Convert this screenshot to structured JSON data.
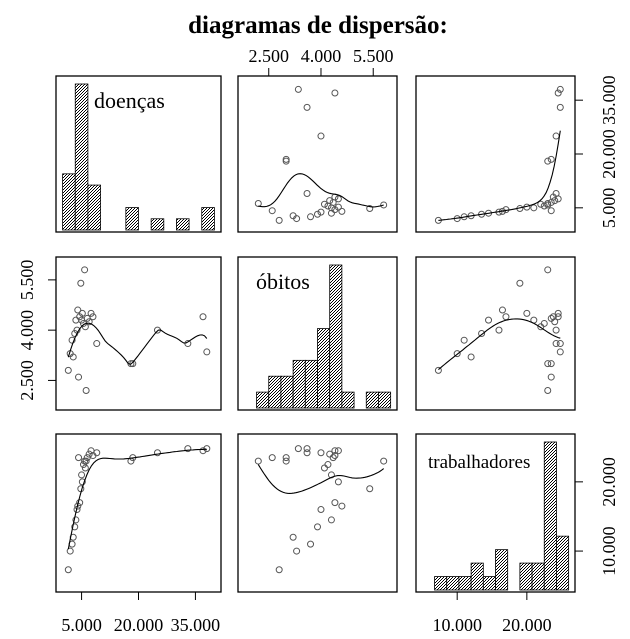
{
  "chart_data": {
    "type": "scatter",
    "title": "diagramas de dispersão:",
    "variables": [
      {
        "name": "doenças",
        "ticks": [
          5000,
          20000,
          35000
        ],
        "tick_labels": [
          "5.000",
          "20.000",
          "35.000"
        ],
        "range": [
          0,
          40000
        ]
      },
      {
        "name": "óbitos",
        "ticks": [
          2500,
          4000,
          5500
        ],
        "tick_labels": [
          "2.500",
          "4.000",
          "5.500"
        ],
        "range": [
          1800,
          6000
        ]
      },
      {
        "name": "trabalhadores",
        "ticks": [
          10000,
          20000
        ],
        "tick_labels": [
          "10.000",
          "20.000"
        ],
        "range": [
          5000,
          26000
        ]
      }
    ],
    "tick_placement": {
      "doenças": [
        "bottom",
        "right"
      ],
      "óbitos": [
        "top",
        "left"
      ],
      "trabalhadores": [
        "bottom",
        "right"
      ]
    },
    "points": [
      {
        "doencas": 1500,
        "obitos": 2800,
        "trabalhadores": 7300
      },
      {
        "doencas": 2000,
        "obitos": 3300,
        "trabalhadores": 10000
      },
      {
        "doencas": 2500,
        "obitos": 3700,
        "trabalhadores": 11000
      },
      {
        "doencas": 2800,
        "obitos": 3200,
        "trabalhadores": 12000
      },
      {
        "doencas": 3200,
        "obitos": 3900,
        "trabalhadores": 13500
      },
      {
        "doencas": 3500,
        "obitos": 4300,
        "trabalhadores": 14500
      },
      {
        "doencas": 3800,
        "obitos": 4000,
        "trabalhadores": 16000
      },
      {
        "doencas": 4000,
        "obitos": 4600,
        "trabalhadores": 16500
      },
      {
        "doencas": 4200,
        "obitos": 2600,
        "trabalhadores": 23500
      },
      {
        "doencas": 4500,
        "obitos": 4400,
        "trabalhadores": 17000
      },
      {
        "doencas": 4800,
        "obitos": 5400,
        "trabalhadores": 19000
      },
      {
        "doencas": 5000,
        "obitos": 4300,
        "trabalhadores": 21000
      },
      {
        "doencas": 5200,
        "obitos": 4500,
        "trabalhadores": 20000
      },
      {
        "doencas": 5500,
        "obitos": 4200,
        "trabalhadores": 22500
      },
      {
        "doencas": 5800,
        "obitos": 5800,
        "trabalhadores": 23000
      },
      {
        "doencas": 6000,
        "obitos": 4100,
        "trabalhadores": 22000
      },
      {
        "doencas": 6200,
        "obitos": 2200,
        "trabalhadores": 23000
      },
      {
        "doencas": 6500,
        "obitos": 4350,
        "trabalhadores": 23500
      },
      {
        "doencas": 7000,
        "obitos": 4250,
        "trabalhadores": 24000
      },
      {
        "doencas": 7500,
        "obitos": 4500,
        "trabalhadores": 24500
      },
      {
        "doencas": 8000,
        "obitos": 4400,
        "trabalhadores": 23800
      },
      {
        "doencas": 9000,
        "obitos": 3600,
        "trabalhadores": 24200
      },
      {
        "doencas": 18000,
        "obitos": 3000,
        "trabalhadores": 23000
      },
      {
        "doencas": 18500,
        "obitos": 3000,
        "trabalhadores": 23500
      },
      {
        "doencas": 25000,
        "obitos": 4000,
        "trabalhadores": 24200
      },
      {
        "doencas": 33000,
        "obitos": 3600,
        "trabalhadores": 24800
      },
      {
        "doencas": 37000,
        "obitos": 4400,
        "trabalhadores": 24500
      },
      {
        "doencas": 38000,
        "obitos": 3350,
        "trabalhadores": 24800
      }
    ]
  }
}
